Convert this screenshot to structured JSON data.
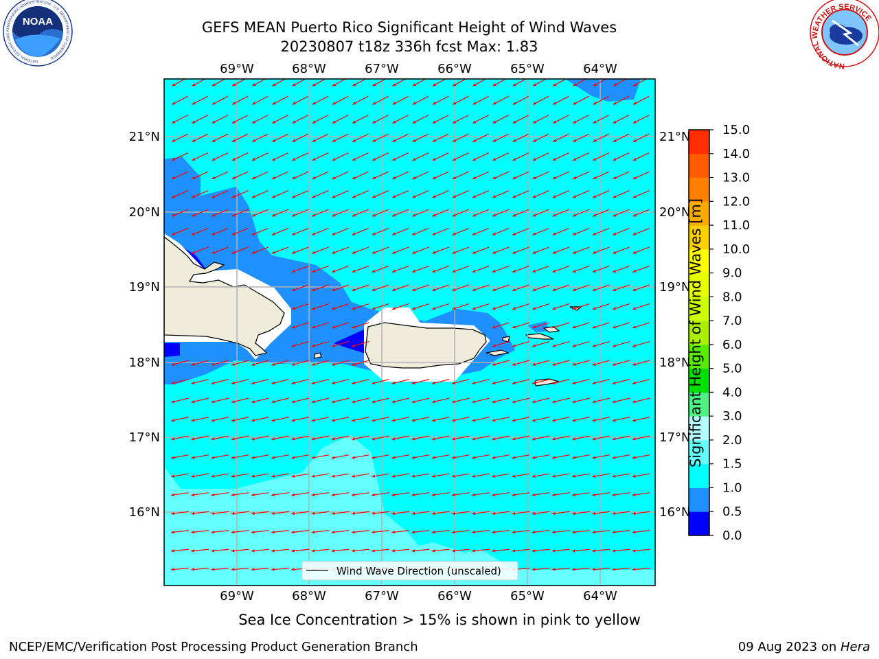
{
  "header": {
    "title_line1": "GEFS MEAN Puerto Rico Significant Height of Wind Waves",
    "title_line2": "20230807 t18z 336h fcst   Max: 1.83"
  },
  "logos": {
    "noaa_text": "NOAA",
    "noaa_ring_text": "NATIONAL OCEANIC AND ATMOSPHERIC ADMINISTRATION · U.S. DEPARTMENT OF COMMERCE",
    "nws_ring_text": "NATIONAL WEATHER SERVICE"
  },
  "map": {
    "lon_labels": [
      "69°W",
      "68°W",
      "67°W",
      "66°W",
      "65°W",
      "64°W"
    ],
    "lat_labels": [
      "21°N",
      "20°N",
      "19°N",
      "18°N",
      "17°N",
      "16°N"
    ],
    "legend_label": "Wind Wave Direction (unscaled)",
    "ocean_color": "#00ffff",
    "land_color": "#efecdc",
    "arrow_color": "#ff0000",
    "arrow_direction": "toward west-southwest"
  },
  "colorbar": {
    "label": "Significant Height of Wind Waves [m]",
    "tick_labels": [
      "0.0",
      "0.5",
      "1.0",
      "1.5",
      "2.0",
      "3.0",
      "4.0",
      "5.0",
      "6.0",
      "7.0",
      "8.0",
      "9.0",
      "10.0",
      "11.0",
      "12.0",
      "13.0",
      "14.0",
      "15.0"
    ],
    "colors": [
      "#0000ff",
      "#1e90ff",
      "#00ffff",
      "#66ffff",
      "#b3ffff",
      "#4ef382",
      "#00e000",
      "#55ee00",
      "#aaee00",
      "#ccff00",
      "#e6ff00",
      "#ffff00",
      "#ffd000",
      "#ffaa00",
      "#ff8000",
      "#ff5a00",
      "#ff2d00"
    ]
  },
  "footer": {
    "sea_ice_note": "Sea Ice Concentration > 15% is shown in pink to yellow",
    "credit": "NCEP/EMC/Verification Post Processing Product Generation Branch",
    "date_text": "09 Aug 2023 on ",
    "machine": "Hera"
  }
}
